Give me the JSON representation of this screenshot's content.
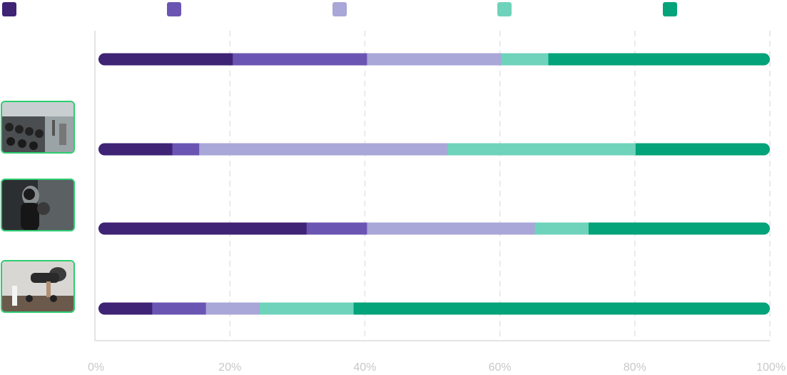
{
  "chart_data": {
    "type": "bar",
    "orientation": "horizontal",
    "stacked": "percent",
    "x_ticks": [
      "0%",
      "20%",
      "40%",
      "60%",
      "80%",
      "100%"
    ],
    "xlim": [
      0,
      100
    ],
    "grid": "vertical-dashed",
    "legend_position": "top",
    "series": [
      {
        "color": "#3f2374",
        "values": [
          20,
          11,
          31,
          8
        ]
      },
      {
        "color": "#6b55b3",
        "values": [
          20,
          4,
          9,
          8
        ]
      },
      {
        "color": "#a9a6d8",
        "values": [
          20,
          37,
          25,
          8
        ]
      },
      {
        "color": "#6fd3bb",
        "values": [
          7,
          28,
          8,
          14
        ]
      },
      {
        "color": "#04a37a",
        "values": [
          33,
          20,
          27,
          62
        ]
      }
    ],
    "rows": [
      {
        "image": "none"
      },
      {
        "image": "gym-dumbbell-rack-photo"
      },
      {
        "image": "boxing-athlete-photo"
      },
      {
        "image": "pushup-dumbbells-photo"
      }
    ]
  }
}
